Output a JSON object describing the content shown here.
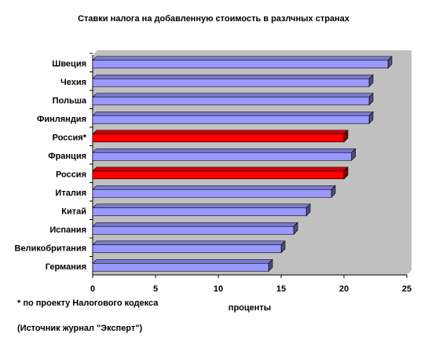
{
  "chart_data": {
    "type": "bar3d_horizontal",
    "title": "Ставки налога на добавленную стоимость в разлчных странах",
    "categories": [
      "Швеция",
      "Чехия",
      "Польша",
      "Финляндия",
      "Россия*",
      "Франция",
      "Россия",
      "Италия",
      "Китай",
      "Испания",
      "Великобритания",
      "Германия"
    ],
    "values": [
      23.5,
      22,
      22,
      22,
      20,
      20.6,
      20,
      19,
      17,
      16,
      15,
      14
    ],
    "colors": [
      "#9999ff",
      "#9999ff",
      "#9999ff",
      "#9999ff",
      "#ff0000",
      "#9999ff",
      "#ff0000",
      "#9999ff",
      "#9999ff",
      "#9999ff",
      "#9999ff",
      "#9999ff"
    ],
    "xlim": [
      0,
      25
    ],
    "xticks": [
      0,
      5,
      10,
      15,
      20,
      25
    ],
    "x_label": "проценты",
    "footnote": "* по проекту Налогового кодекса",
    "source": "(Источник журнал \"Эксперт\")"
  }
}
